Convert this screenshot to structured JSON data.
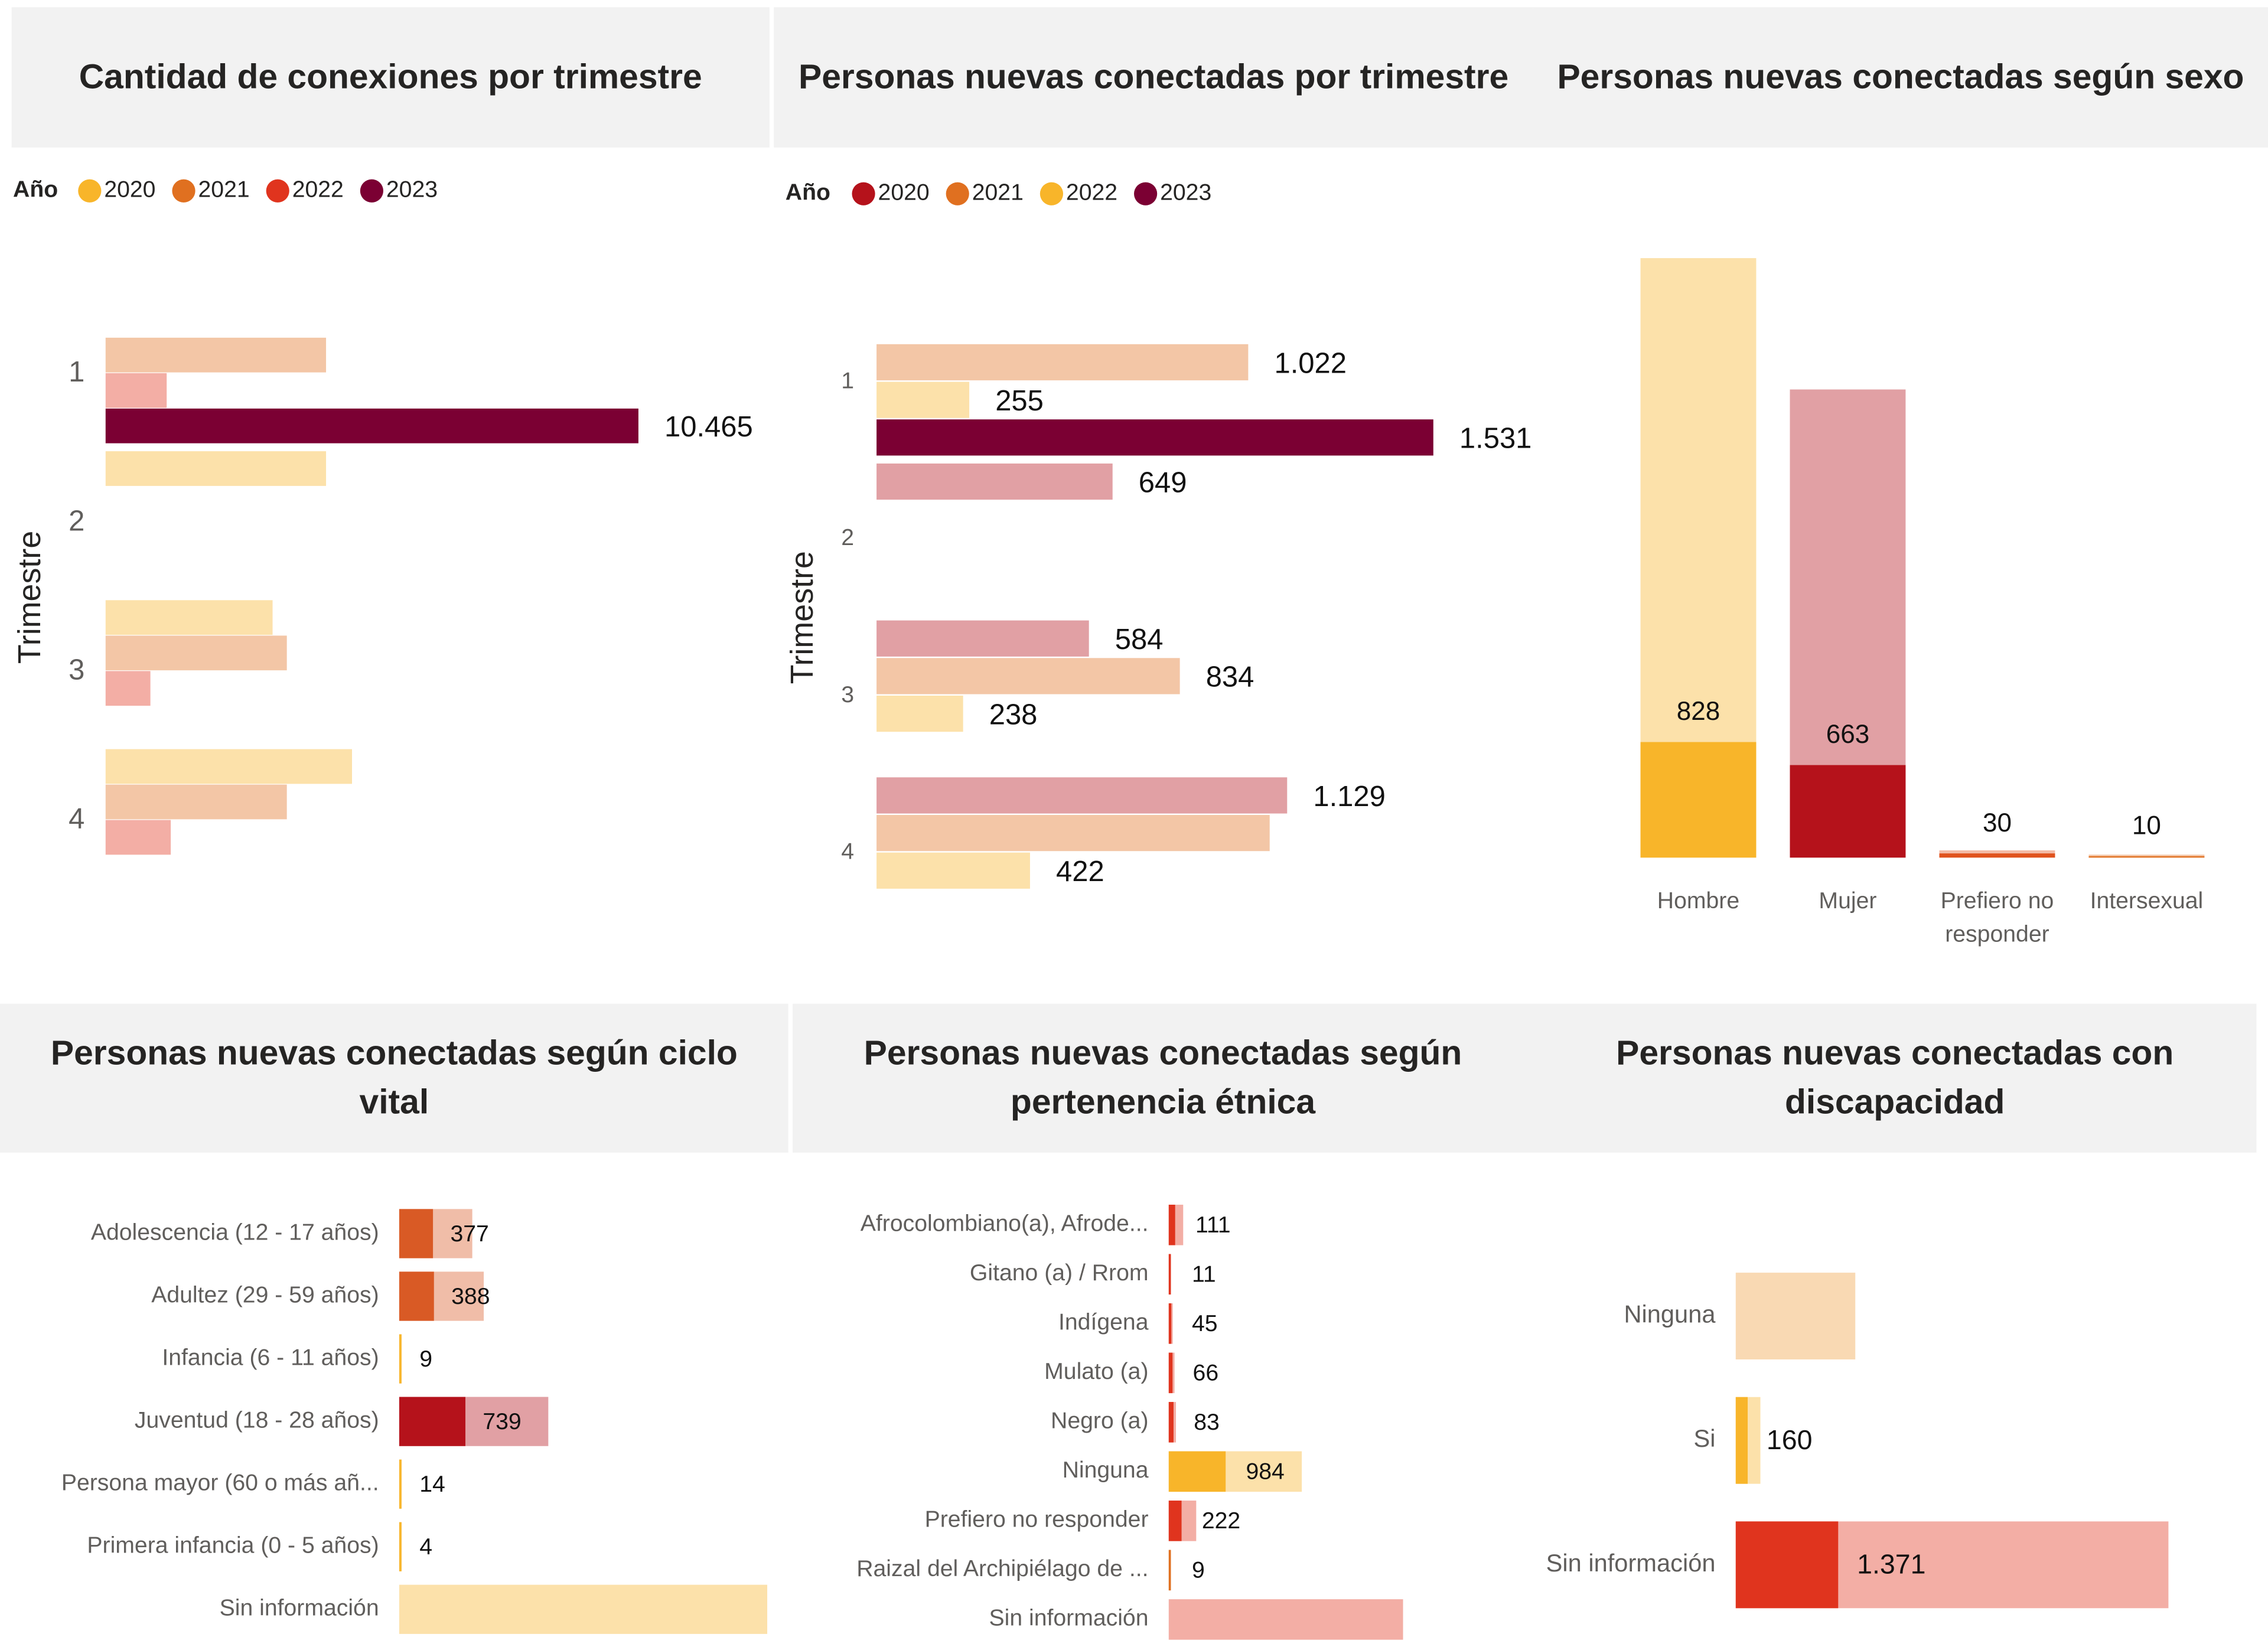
{
  "chart_data": [
    {
      "type": "bar",
      "orientation": "horizontal",
      "title": "Cantidad de conexiones por trimestre",
      "legend_title": "Año",
      "ylabel": "Trimestre",
      "categories": [
        "1",
        "2",
        "3",
        "4"
      ],
      "highlight": "2023",
      "xlim": [
        0,
        12500
      ],
      "series": [
        {
          "name": "2020",
          "color": "#F8B52A",
          "values": [
            null,
            4330,
            3280,
            4840
          ]
        },
        {
          "name": "2021",
          "color": "#E07020",
          "values": [
            4330,
            null,
            3560,
            3560
          ]
        },
        {
          "name": "2022",
          "color": "#E0341E",
          "values": [
            1200,
            null,
            880,
            1280
          ]
        },
        {
          "name": "2023",
          "color": "#7B0033",
          "values": [
            10465,
            null,
            null,
            null
          ],
          "value_labels": [
            "10.465",
            null,
            null,
            null
          ]
        }
      ]
    },
    {
      "type": "bar",
      "orientation": "horizontal",
      "title": "Personas nuevas conectadas por trimestre",
      "legend_title": "Año",
      "ylabel": "Trimestre",
      "categories": [
        "1",
        "2",
        "3",
        "4"
      ],
      "highlight": "2023",
      "xlim": [
        0,
        1750
      ],
      "series": [
        {
          "name": "2020",
          "color": "#B5121B",
          "values": [
            null,
            649,
            584,
            1129
          ],
          "value_labels": [
            null,
            "649",
            "584",
            "1.129"
          ]
        },
        {
          "name": "2021",
          "color": "#E07020",
          "values": [
            1022,
            null,
            834,
            1081
          ],
          "value_labels": [
            "1.022",
            null,
            "834",
            null
          ]
        },
        {
          "name": "2022",
          "color": "#F8B52A",
          "values": [
            255,
            null,
            238,
            422
          ],
          "value_labels": [
            "255",
            null,
            "238",
            "422"
          ]
        },
        {
          "name": "2023",
          "color": "#7B0033",
          "values": [
            1531,
            null,
            null,
            null
          ],
          "value_labels": [
            "1.531",
            null,
            null,
            null
          ]
        }
      ]
    },
    {
      "type": "bar",
      "orientation": "vertical",
      "title": "Personas nuevas conectadas según sexo",
      "categories": [
        "Hombre",
        "Mujer",
        "Prefiero no responder",
        "Intersexual"
      ],
      "colors": [
        "#F8B52A",
        "#B5121B",
        "#E0531E",
        "#E07020"
      ],
      "values": [
        828,
        663,
        30,
        10
      ],
      "totals": [
        4295,
        3354,
        52,
        21
      ],
      "ylim": [
        0,
        4300
      ]
    },
    {
      "type": "bar",
      "orientation": "horizontal",
      "title": "Personas nuevas conectadas según ciclo vital",
      "categories": [
        "Adolescencia (12 - 17 años)",
        "Adultez (29 - 59 años)",
        "Infancia (6 - 11 años)",
        "Juventud (18 - 28 años)",
        "Persona mayor (60 o más añ...",
        "Primera infancia (0 - 5 años)",
        "Sin información"
      ],
      "colors": [
        "#D95A25",
        "#D95A25",
        "#F8B52A",
        "#B5121B",
        "#F8B52A",
        "#F8B52A",
        "#F8B52A"
      ],
      "values": [
        377,
        388,
        9,
        739,
        14,
        4,
        null
      ],
      "totals": [
        816,
        944,
        30,
        1665,
        30,
        30,
        4110
      ],
      "xlim": [
        0,
        4200
      ]
    },
    {
      "type": "bar",
      "orientation": "horizontal",
      "title": "Personas nuevas conectadas según pertenencia étnica",
      "categories": [
        "Afrocolombiano(a), Afrode...",
        "Gitano (a) / Rrom",
        "Indígena",
        "Mulato (a)",
        "Negro (a)",
        "Ninguna",
        "Prefiero no responder",
        "Raizal del Archipiélago de ...",
        "Sin información"
      ],
      "colors": [
        "#E0341E",
        "#E0341E",
        "#E0341E",
        "#E0341E",
        "#E0341E",
        "#F8B52A",
        "#E0341E",
        "#E07020",
        "#E0341E"
      ],
      "values": [
        111,
        11,
        45,
        66,
        83,
        984,
        222,
        9,
        null
      ],
      "totals": [
        250,
        30,
        70,
        100,
        125,
        2300,
        475,
        30,
        4050
      ],
      "xlim": [
        0,
        4250
      ]
    },
    {
      "type": "bar",
      "orientation": "horizontal",
      "title": "Personas nuevas conectadas con discapacidad",
      "categories": [
        "Ninguna",
        "Si",
        "Sin información"
      ],
      "colors": [
        "#F0A040",
        "#F8B52A",
        "#E0341E"
      ],
      "values": [
        null,
        160,
        1371
      ],
      "value_labels": [
        null,
        "160",
        "1.371"
      ],
      "totals": [
        1600,
        330,
        5790
      ],
      "xlim": [
        0,
        6000
      ]
    }
  ]
}
